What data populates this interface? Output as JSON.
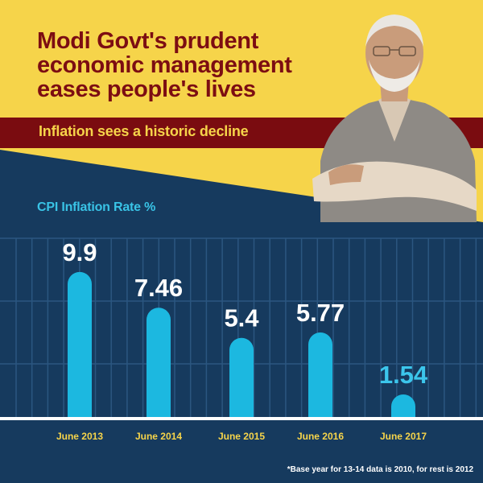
{
  "header": {
    "headline_lines": [
      "Modi Govt's prudent",
      "economic management",
      "eases people's lives"
    ],
    "subheadline": "Inflation sees a historic decline"
  },
  "colors": {
    "yellow": "#f6d44a",
    "maroon": "#7a0c10",
    "navy": "#163a5e",
    "bar": "#1cb8e0"
  },
  "chart_data": {
    "type": "bar",
    "ylabel": "CPI Inflation  Rate %",
    "categories": [
      "June 2013",
      "June 2014",
      "June 2015",
      "June 2016",
      "June 2017"
    ],
    "values": [
      9.9,
      7.46,
      5.4,
      5.77,
      1.54
    ],
    "value_labels": [
      "9.9",
      "7.46",
      "5.4",
      "5.77",
      "1.54"
    ],
    "grid": true
  },
  "footnote": "*Base year for 13-14 data is 2010, for rest is 2012"
}
